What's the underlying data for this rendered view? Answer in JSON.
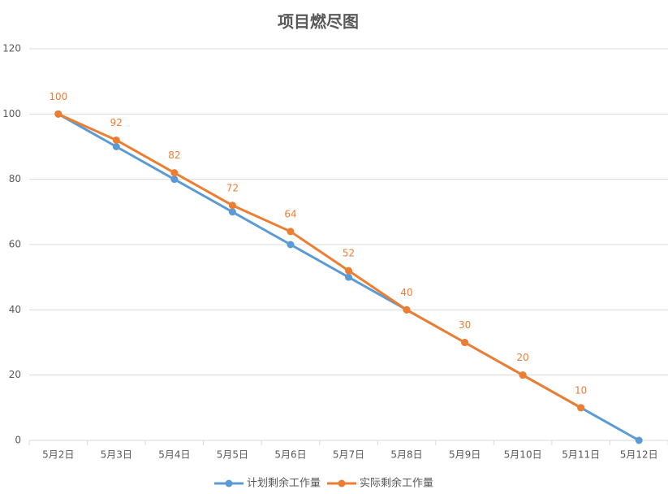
{
  "chart_data": {
    "type": "line",
    "title": "项目燃尽图",
    "categories": [
      "5月2日",
      "5月3日",
      "5月4日",
      "5月5日",
      "5月6日",
      "5月7日",
      "5月8日",
      "5月9日",
      "5月10日",
      "5月11日",
      "5月12日"
    ],
    "series": [
      {
        "name": "计划剩余工作量",
        "color": "#5b9bd5",
        "values": [
          100,
          90,
          80,
          70,
          60,
          50,
          40,
          30,
          20,
          10,
          0
        ],
        "show_labels": false
      },
      {
        "name": "实际剩余工作量",
        "color": "#ed7d31",
        "values": [
          100,
          92,
          82,
          72,
          64,
          52,
          40,
          30,
          20,
          10,
          null
        ],
        "show_labels": true
      }
    ],
    "ylim": [
      0,
      120
    ],
    "yticks": [
      0,
      20,
      40,
      60,
      80,
      100,
      120
    ],
    "grid": true,
    "legend": "bottom"
  }
}
